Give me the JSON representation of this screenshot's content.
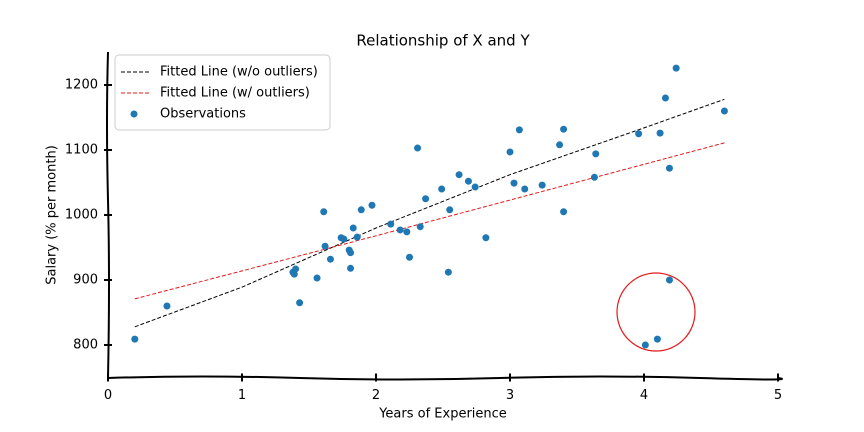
{
  "chart_data": {
    "type": "scatter",
    "title": "Relationship of X and Y",
    "x_label": "Years of Experience",
    "y_label": "Salary (% per month)",
    "xlim": [
      0,
      5
    ],
    "xticks": [
      0,
      1,
      2,
      3,
      4,
      5
    ],
    "ylim": [
      750,
      1250
    ],
    "yticks": [
      800,
      900,
      1000,
      1100,
      1200
    ],
    "legend": "upper left",
    "series": [
      {
        "name": "Fitted Line (w/o outliers)",
        "color": "#000000",
        "style": "dashed",
        "x": [
          0.2,
          1,
          2,
          3,
          4,
          4.6
        ],
        "values": [
          828,
          889,
          980,
          1062,
          1134,
          1178
        ]
      },
      {
        "name": "Fitted Line (w/ outliers)",
        "color": "#e31a1c",
        "style": "dashed",
        "x": [
          0.2,
          1,
          2,
          3,
          4,
          4.6
        ],
        "values": [
          871,
          914,
          968,
          1023,
          1078,
          1111
        ]
      },
      {
        "name": "Observations",
        "color": "#1f77b4",
        "style": "points",
        "x": [
          0.2,
          0.44,
          1.38,
          1.4,
          1.39,
          1.43,
          1.56,
          1.61,
          1.62,
          1.66,
          1.74,
          1.76,
          1.8,
          1.81,
          1.81,
          1.83,
          1.86,
          1.89,
          1.97,
          2.11,
          2.18,
          2.23,
          2.25,
          2.31,
          2.33,
          2.37,
          2.49,
          2.54,
          2.55,
          2.62,
          2.69,
          2.74,
          2.82,
          3.0,
          3.03,
          3.07,
          3.11,
          3.24,
          3.37,
          3.4,
          3.4,
          3.63,
          3.64,
          3.96,
          4.01,
          4.1,
          4.12,
          4.16,
          4.19,
          4.19,
          4.24,
          4.6
        ],
        "values": [
          809,
          860,
          912,
          917,
          909,
          865,
          903,
          1005,
          952,
          932,
          965,
          963,
          946,
          942,
          918,
          980,
          966,
          1008,
          1015,
          986,
          977,
          974,
          935,
          1103,
          982,
          1025,
          1040,
          912,
          1008,
          1062,
          1052,
          1043,
          965,
          1097,
          1049,
          1131,
          1040,
          1046,
          1108,
          1132,
          1005,
          1058,
          1094,
          1125,
          800,
          809,
          1126,
          1180,
          1072,
          900,
          1226,
          1160
        ]
      }
    ]
  }
}
